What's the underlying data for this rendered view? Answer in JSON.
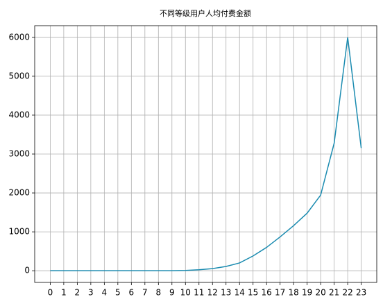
{
  "chart_data": {
    "type": "line",
    "title": "不同等级用户人均付费金额",
    "x": [
      0,
      1,
      2,
      3,
      4,
      5,
      6,
      7,
      8,
      9,
      10,
      11,
      12,
      13,
      14,
      15,
      16,
      17,
      18,
      19,
      20,
      21,
      22,
      23
    ],
    "values": [
      0,
      0,
      0,
      0,
      0,
      1,
      1,
      1,
      1,
      2,
      8,
      25,
      55,
      110,
      200,
      380,
      600,
      870,
      1160,
      1480,
      1945,
      3280,
      6000,
      3155
    ],
    "color": "#1a8bb0",
    "xlim": [
      -1.15,
      24.15
    ],
    "xticks": [
      0,
      1,
      2,
      3,
      4,
      5,
      6,
      7,
      8,
      9,
      10,
      11,
      12,
      13,
      14,
      15,
      16,
      17,
      18,
      19,
      20,
      21,
      22,
      23
    ],
    "ylim": [
      -300,
      6300
    ],
    "yticks": [
      0,
      1000,
      2000,
      3000,
      4000,
      5000,
      6000
    ],
    "grid": true
  }
}
